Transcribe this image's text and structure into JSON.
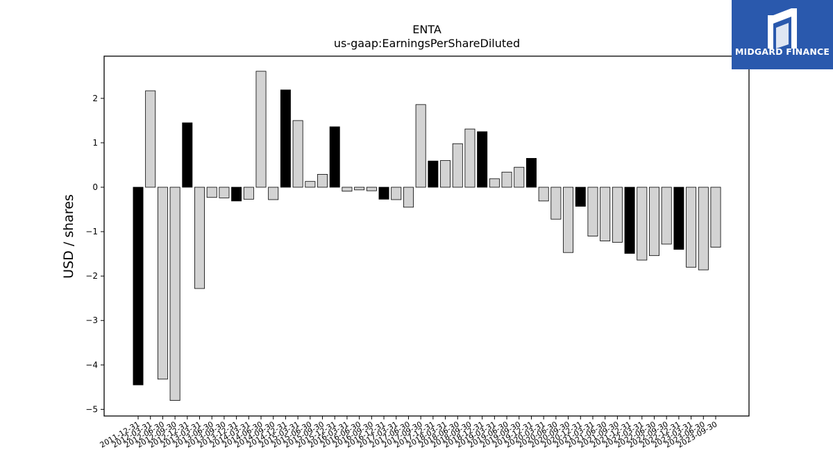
{
  "brand": {
    "name": "MIDGARD FINANCE",
    "color": "#2a59ad"
  },
  "chart_data": {
    "type": "bar",
    "title": "ENTA",
    "subtitle": "us-gaap:EarningsPerShareDiluted",
    "xlabel": "",
    "ylabel": "USD / shares",
    "ylim": [
      -5.15,
      2.95
    ],
    "yticks": [
      2,
      1,
      0,
      -1,
      -2,
      -3,
      -4,
      -5
    ],
    "grid": false,
    "colors": {
      "highlight": "#000000",
      "default": "#d3d3d3",
      "edge": "#000000"
    },
    "categories": [
      "2011-12-31",
      "2012-03-31",
      "2012-06-30",
      "2012-09-30",
      "2012-12-31",
      "2013-03-31",
      "2013-06-30",
      "2013-09-30",
      "2013-12-31",
      "2014-03-31",
      "2014-06-30",
      "2014-09-30",
      "2014-12-31",
      "2015-03-31",
      "2015-06-30",
      "2015-09-30",
      "2015-12-31",
      "2016-03-31",
      "2016-06-30",
      "2016-09-30",
      "2016-12-31",
      "2017-03-31",
      "2017-06-30",
      "2017-09-30",
      "2017-12-31",
      "2018-03-31",
      "2018-06-30",
      "2018-09-30",
      "2018-12-31",
      "2019-03-31",
      "2019-06-30",
      "2019-09-30",
      "2019-12-31",
      "2020-03-31",
      "2020-06-30",
      "2020-09-30",
      "2020-12-31",
      "2021-03-31",
      "2021-06-30",
      "2021-09-30",
      "2021-12-31",
      "2022-03-31",
      "2022-06-30",
      "2022-09-30",
      "2022-12-31",
      "2023-03-31",
      "2023-06-30",
      "2023-09-30"
    ],
    "values": [
      -4.45,
      2.17,
      -4.32,
      -4.8,
      1.45,
      -2.28,
      -0.23,
      -0.24,
      -0.31,
      -0.27,
      2.61,
      -0.28,
      2.19,
      1.5,
      0.13,
      0.29,
      1.36,
      -0.09,
      -0.06,
      -0.08,
      -0.27,
      -0.28,
      -0.45,
      1.86,
      0.59,
      0.6,
      0.98,
      1.31,
      1.25,
      0.19,
      0.34,
      0.45,
      0.65,
      -0.31,
      -0.72,
      -1.47,
      -0.43,
      -1.1,
      -1.21,
      -1.24,
      -1.49,
      -1.64,
      -1.54,
      -1.28,
      -1.4,
      -1.8,
      -1.86,
      -1.35
    ],
    "highlight": [
      true,
      false,
      false,
      false,
      true,
      false,
      false,
      false,
      true,
      false,
      false,
      false,
      true,
      false,
      false,
      false,
      true,
      false,
      false,
      false,
      true,
      false,
      false,
      false,
      true,
      false,
      false,
      false,
      true,
      false,
      false,
      false,
      true,
      false,
      false,
      false,
      true,
      false,
      false,
      false,
      true,
      false,
      false,
      false,
      true,
      false,
      false,
      false
    ]
  }
}
